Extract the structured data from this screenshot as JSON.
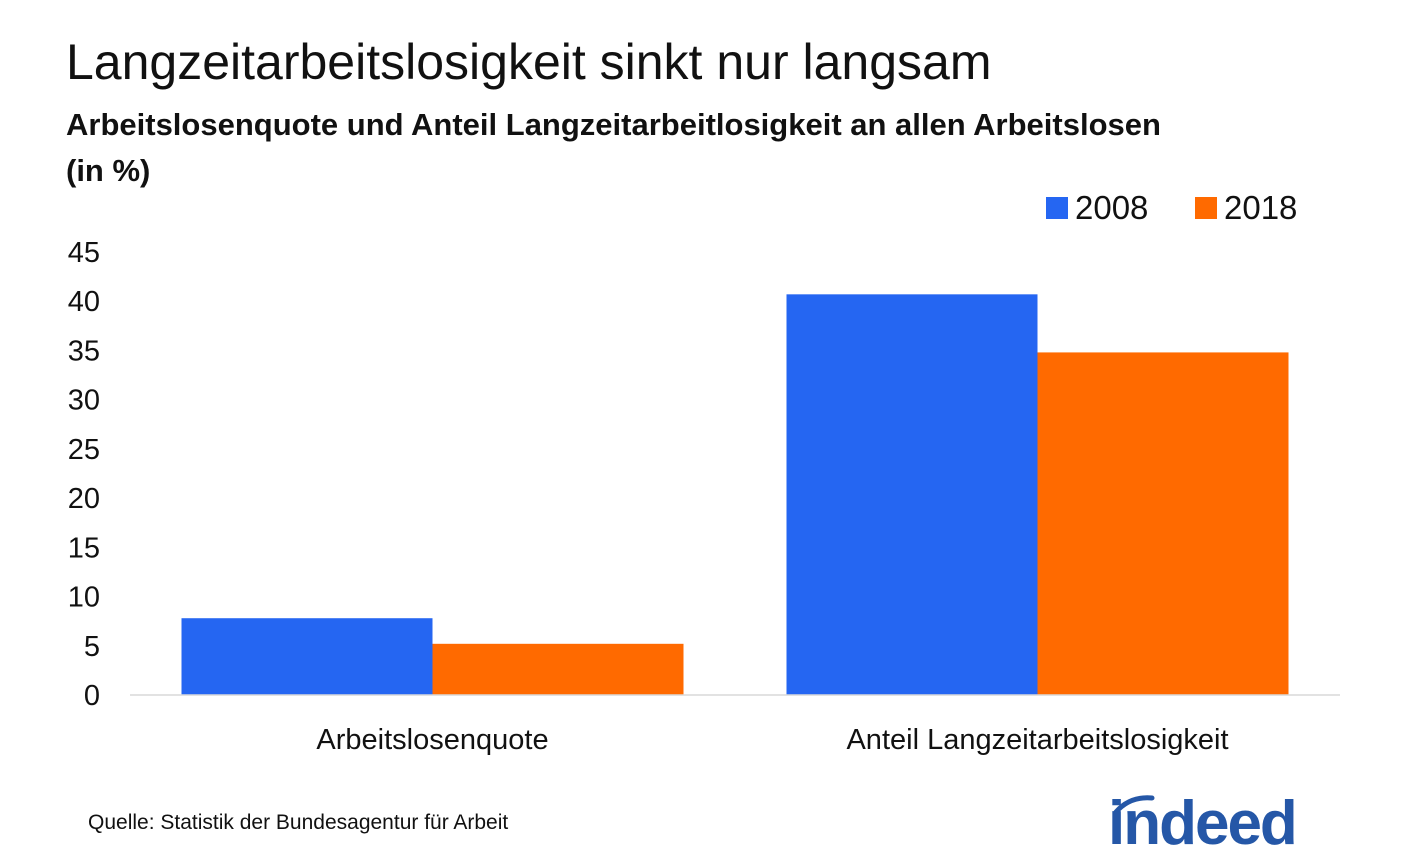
{
  "header": {
    "title": "Langzeitarbeitslosigkeit sinkt nur langsam",
    "subtitle": "Arbeitslosenquote und Anteil Langzeitarbeitlosigkeit an allen Arbeitslosen (in %)"
  },
  "footer": {
    "source": "Quelle: Statistik der Bundesagentur für Arbeit",
    "logo_text": "indeed"
  },
  "chart_data": {
    "type": "bar",
    "title": "Langzeitarbeitslosigkeit sinkt nur langsam",
    "subtitle": "Arbeitslosenquote und Anteil Langzeitarbeitlosigkeit an allen Arbeitslosen (in %)",
    "categories": [
      "Arbeitslosenquote",
      "Anteil Langzeitarbeitslosigkeit"
    ],
    "series": [
      {
        "name": "2008",
        "values": [
          7.8,
          40.7
        ],
        "color": "#2566f2"
      },
      {
        "name": "2018",
        "values": [
          5.2,
          34.8
        ],
        "color": "#ff6a00"
      }
    ],
    "ylim": [
      0,
      45
    ],
    "yticks": [
      "0",
      "5",
      "10",
      "15",
      "20",
      "25",
      "30",
      "35",
      "40",
      "45"
    ],
    "grid": false,
    "legend_position": "top-right"
  },
  "colors": {
    "logo": "#2557a7",
    "axis_line": "#d9d9d9"
  }
}
